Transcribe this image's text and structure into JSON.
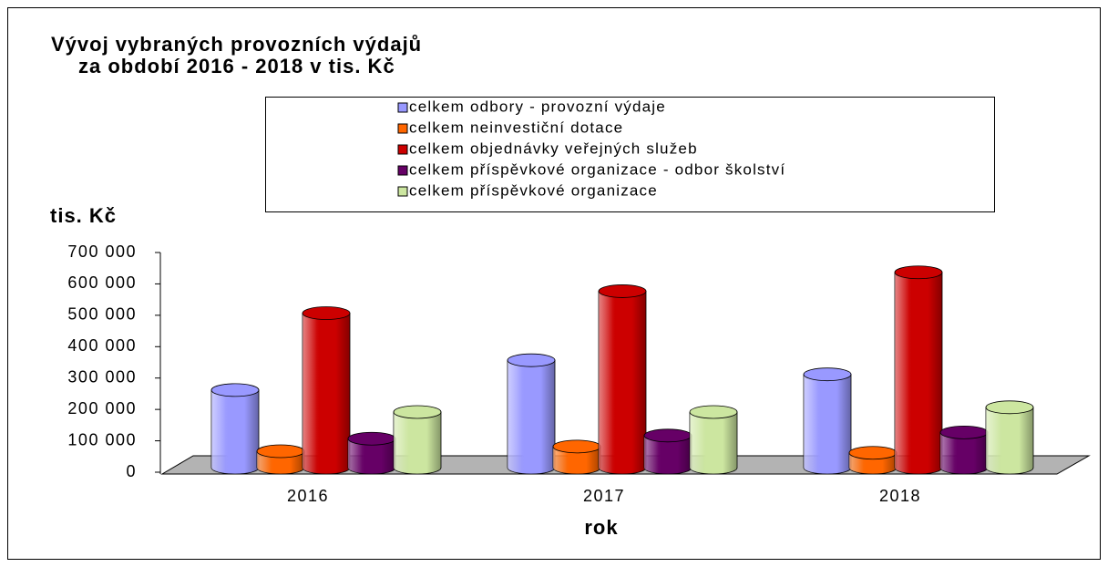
{
  "chart_data": {
    "type": "bar",
    "title": [
      "Vývoj vybraných provozních výdajů",
      "za období 2016 - 2018  v tis. Kč"
    ],
    "y_label": "tis. Kč",
    "x_label": "rok",
    "categories": [
      "2016",
      "2017",
      "2018"
    ],
    "series": [
      {
        "name": "celkem odbory - provozní výdaje",
        "color": "#9999ff",
        "values": [
          285000,
          380000,
          335000
        ]
      },
      {
        "name": "celkem neinvestiční dotace",
        "color": "#ff6600",
        "values": [
          90000,
          105000,
          85000
        ]
      },
      {
        "name": "celkem objednávky veřejných služeb",
        "color": "#cc0000",
        "values": [
          530000,
          600000,
          660000
        ]
      },
      {
        "name": "celkem příspěvkové organizace - odbor školství",
        "color": "#660066",
        "values": [
          130000,
          140000,
          150000
        ]
      },
      {
        "name": "celkem příspěvkové organizace",
        "color": "#cce6a0",
        "values": [
          215000,
          215000,
          230000
        ]
      }
    ],
    "ylim": [
      0,
      700000
    ],
    "yticks": [
      0,
      {
        "value": 100000,
        "label": "100 000"
      },
      {
        "value": 200000,
        "label": "200 000"
      },
      {
        "value": 300000,
        "label": "300 000"
      },
      {
        "value": 400000,
        "label": "400 000"
      },
      {
        "value": 500000,
        "label": "500 000"
      },
      {
        "value": 600000,
        "label": "600 000"
      },
      {
        "value": 700000,
        "label": "700 000"
      }
    ]
  }
}
